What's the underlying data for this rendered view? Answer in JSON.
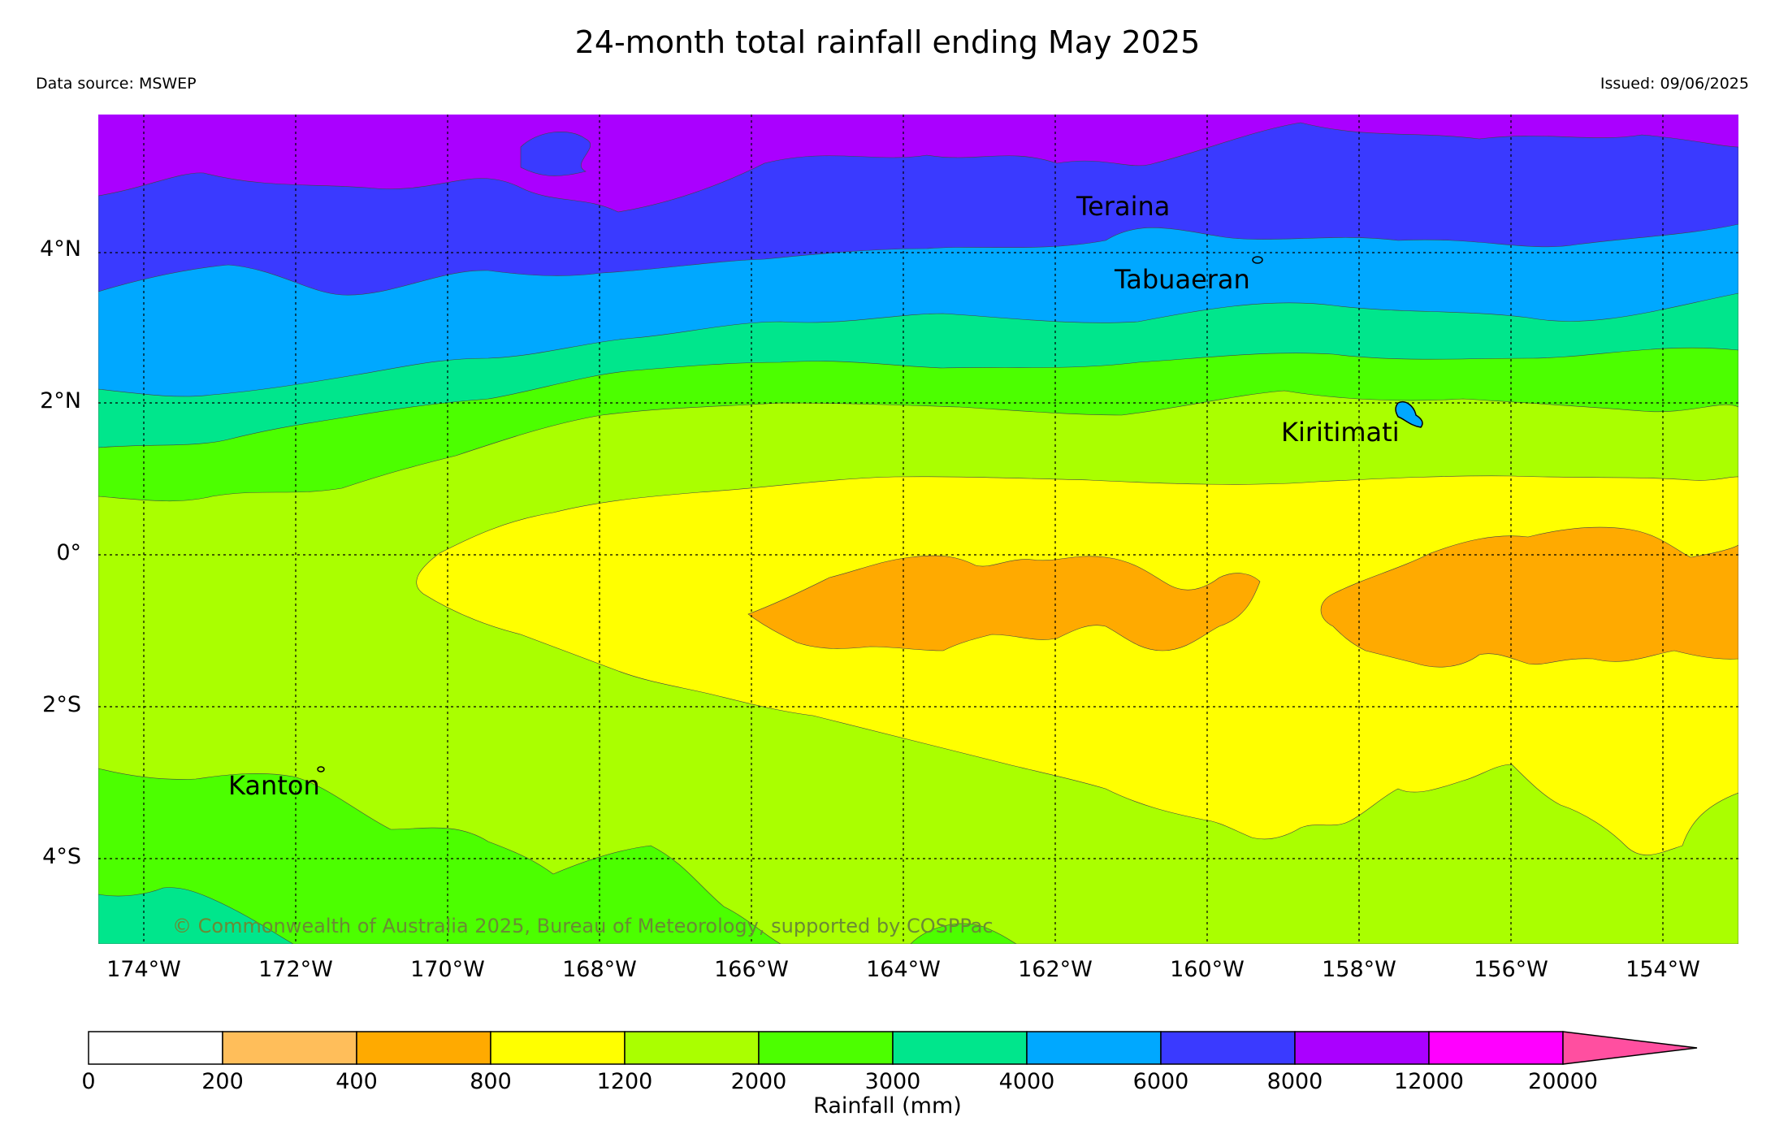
{
  "title": "24-month total rainfall ending May 2025",
  "data_source": "Data source: MSWEP",
  "issued": "Issued: 09/06/2025",
  "copyright": "© Commonwealth of Australia 2025, Bureau of Meteorology, supported by COSPPac",
  "lat_labels": [
    "4°N",
    "2°N",
    "0°",
    "2°S",
    "4°S"
  ],
  "lon_labels": [
    "174°W",
    "172°W",
    "170°W",
    "168°W",
    "166°W",
    "164°W",
    "162°W",
    "160°W",
    "158°W",
    "156°W",
    "154°W"
  ],
  "places": {
    "teraina": "Teraina",
    "tabuaeran": "Tabuaeran",
    "kiritimati": "Kiritimati",
    "kanton": "Kanton"
  },
  "colorbar": {
    "title": "Rainfall (mm)",
    "ticks": [
      "0",
      "200",
      "400",
      "800",
      "1200",
      "2000",
      "3000",
      "4000",
      "6000",
      "8000",
      "12000",
      "20000"
    ],
    "colors": [
      "#ffffff",
      "#ffbe5a",
      "#ffaa00",
      "#ffff00",
      "#aaff00",
      "#4cff00",
      "#00e68c",
      "#00a8ff",
      "#3a3aff",
      "#aa00ff",
      "#ff00ff",
      "#ff4fa0"
    ]
  },
  "colors": {
    "band_purple": "#aa00ff",
    "band_blue": "#3a3aff",
    "band_lightblue": "#00a8ff",
    "band_teal": "#00e68c",
    "band_green": "#4cff00",
    "band_yellowgreen": "#aaff00",
    "band_yellow": "#ffff00",
    "band_orange": "#ffaa00"
  }
}
